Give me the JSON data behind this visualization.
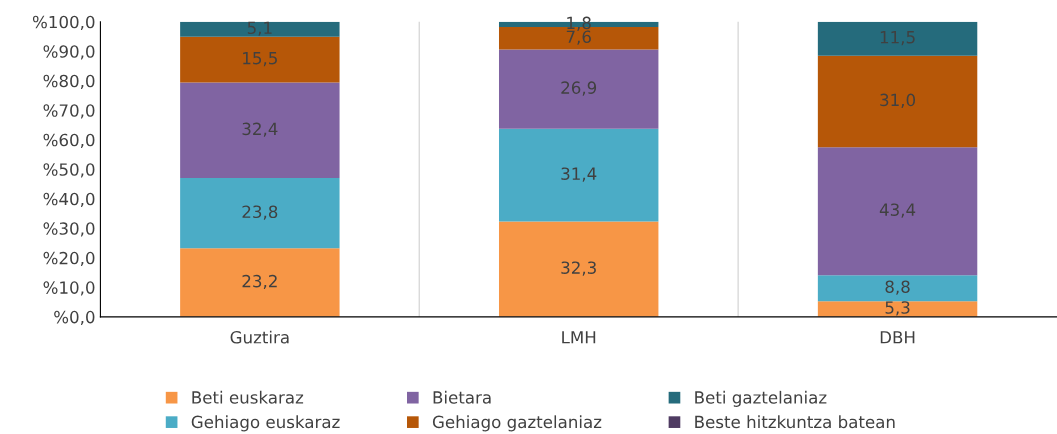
{
  "chart_data": {
    "type": "bar",
    "stacked": true,
    "categories": [
      "Guztira",
      "LMH",
      "DBH"
    ],
    "series": [
      {
        "name": "Beti euskaraz",
        "color": "#f79646",
        "values": [
          23.2,
          32.3,
          5.3
        ],
        "value_labels": [
          "23,2",
          "32,3",
          "5,3"
        ]
      },
      {
        "name": "Gehiago euskaraz",
        "color": "#4bacc6",
        "values": [
          23.8,
          31.4,
          8.8
        ],
        "value_labels": [
          "23,8",
          "31,4",
          "8,8"
        ]
      },
      {
        "name": "Bietara",
        "color": "#8064a2",
        "values": [
          32.4,
          26.9,
          43.4
        ],
        "value_labels": [
          "32,4",
          "26,9",
          "43,4"
        ]
      },
      {
        "name": "Gehiago gaztelaniaz",
        "color": "#b65708",
        "values": [
          15.5,
          7.6,
          31.0
        ],
        "value_labels": [
          "15,5",
          "7,6",
          "31,0"
        ]
      },
      {
        "name": "Beti gaztelaniaz",
        "color": "#256b7c",
        "values": [
          5.1,
          1.8,
          11.5
        ],
        "value_labels": [
          "5,1",
          "1,8",
          "11,5"
        ]
      },
      {
        "name": "Beste hitzkuntza batean",
        "color": "#4f3b62",
        "values": [
          0,
          0,
          0
        ],
        "value_labels": [
          null,
          null,
          null
        ]
      }
    ],
    "ylim": [
      0,
      100
    ],
    "yticks": [
      {
        "value": 0,
        "label": "%0,0"
      },
      {
        "value": 10,
        "label": "%10,0"
      },
      {
        "value": 20,
        "label": "%20,0"
      },
      {
        "value": 30,
        "label": "%30,0"
      },
      {
        "value": 40,
        "label": "%40,0"
      },
      {
        "value": 50,
        "label": "%50,0"
      },
      {
        "value": 60,
        "label": "%60,0"
      },
      {
        "value": 70,
        "label": "%70,0"
      },
      {
        "value": 80,
        "label": "%80,0"
      },
      {
        "value": 90,
        "label": "%90,0"
      },
      {
        "value": 100,
        "label": "%100,0"
      }
    ],
    "grid": "x",
    "legend": "bottom"
  }
}
